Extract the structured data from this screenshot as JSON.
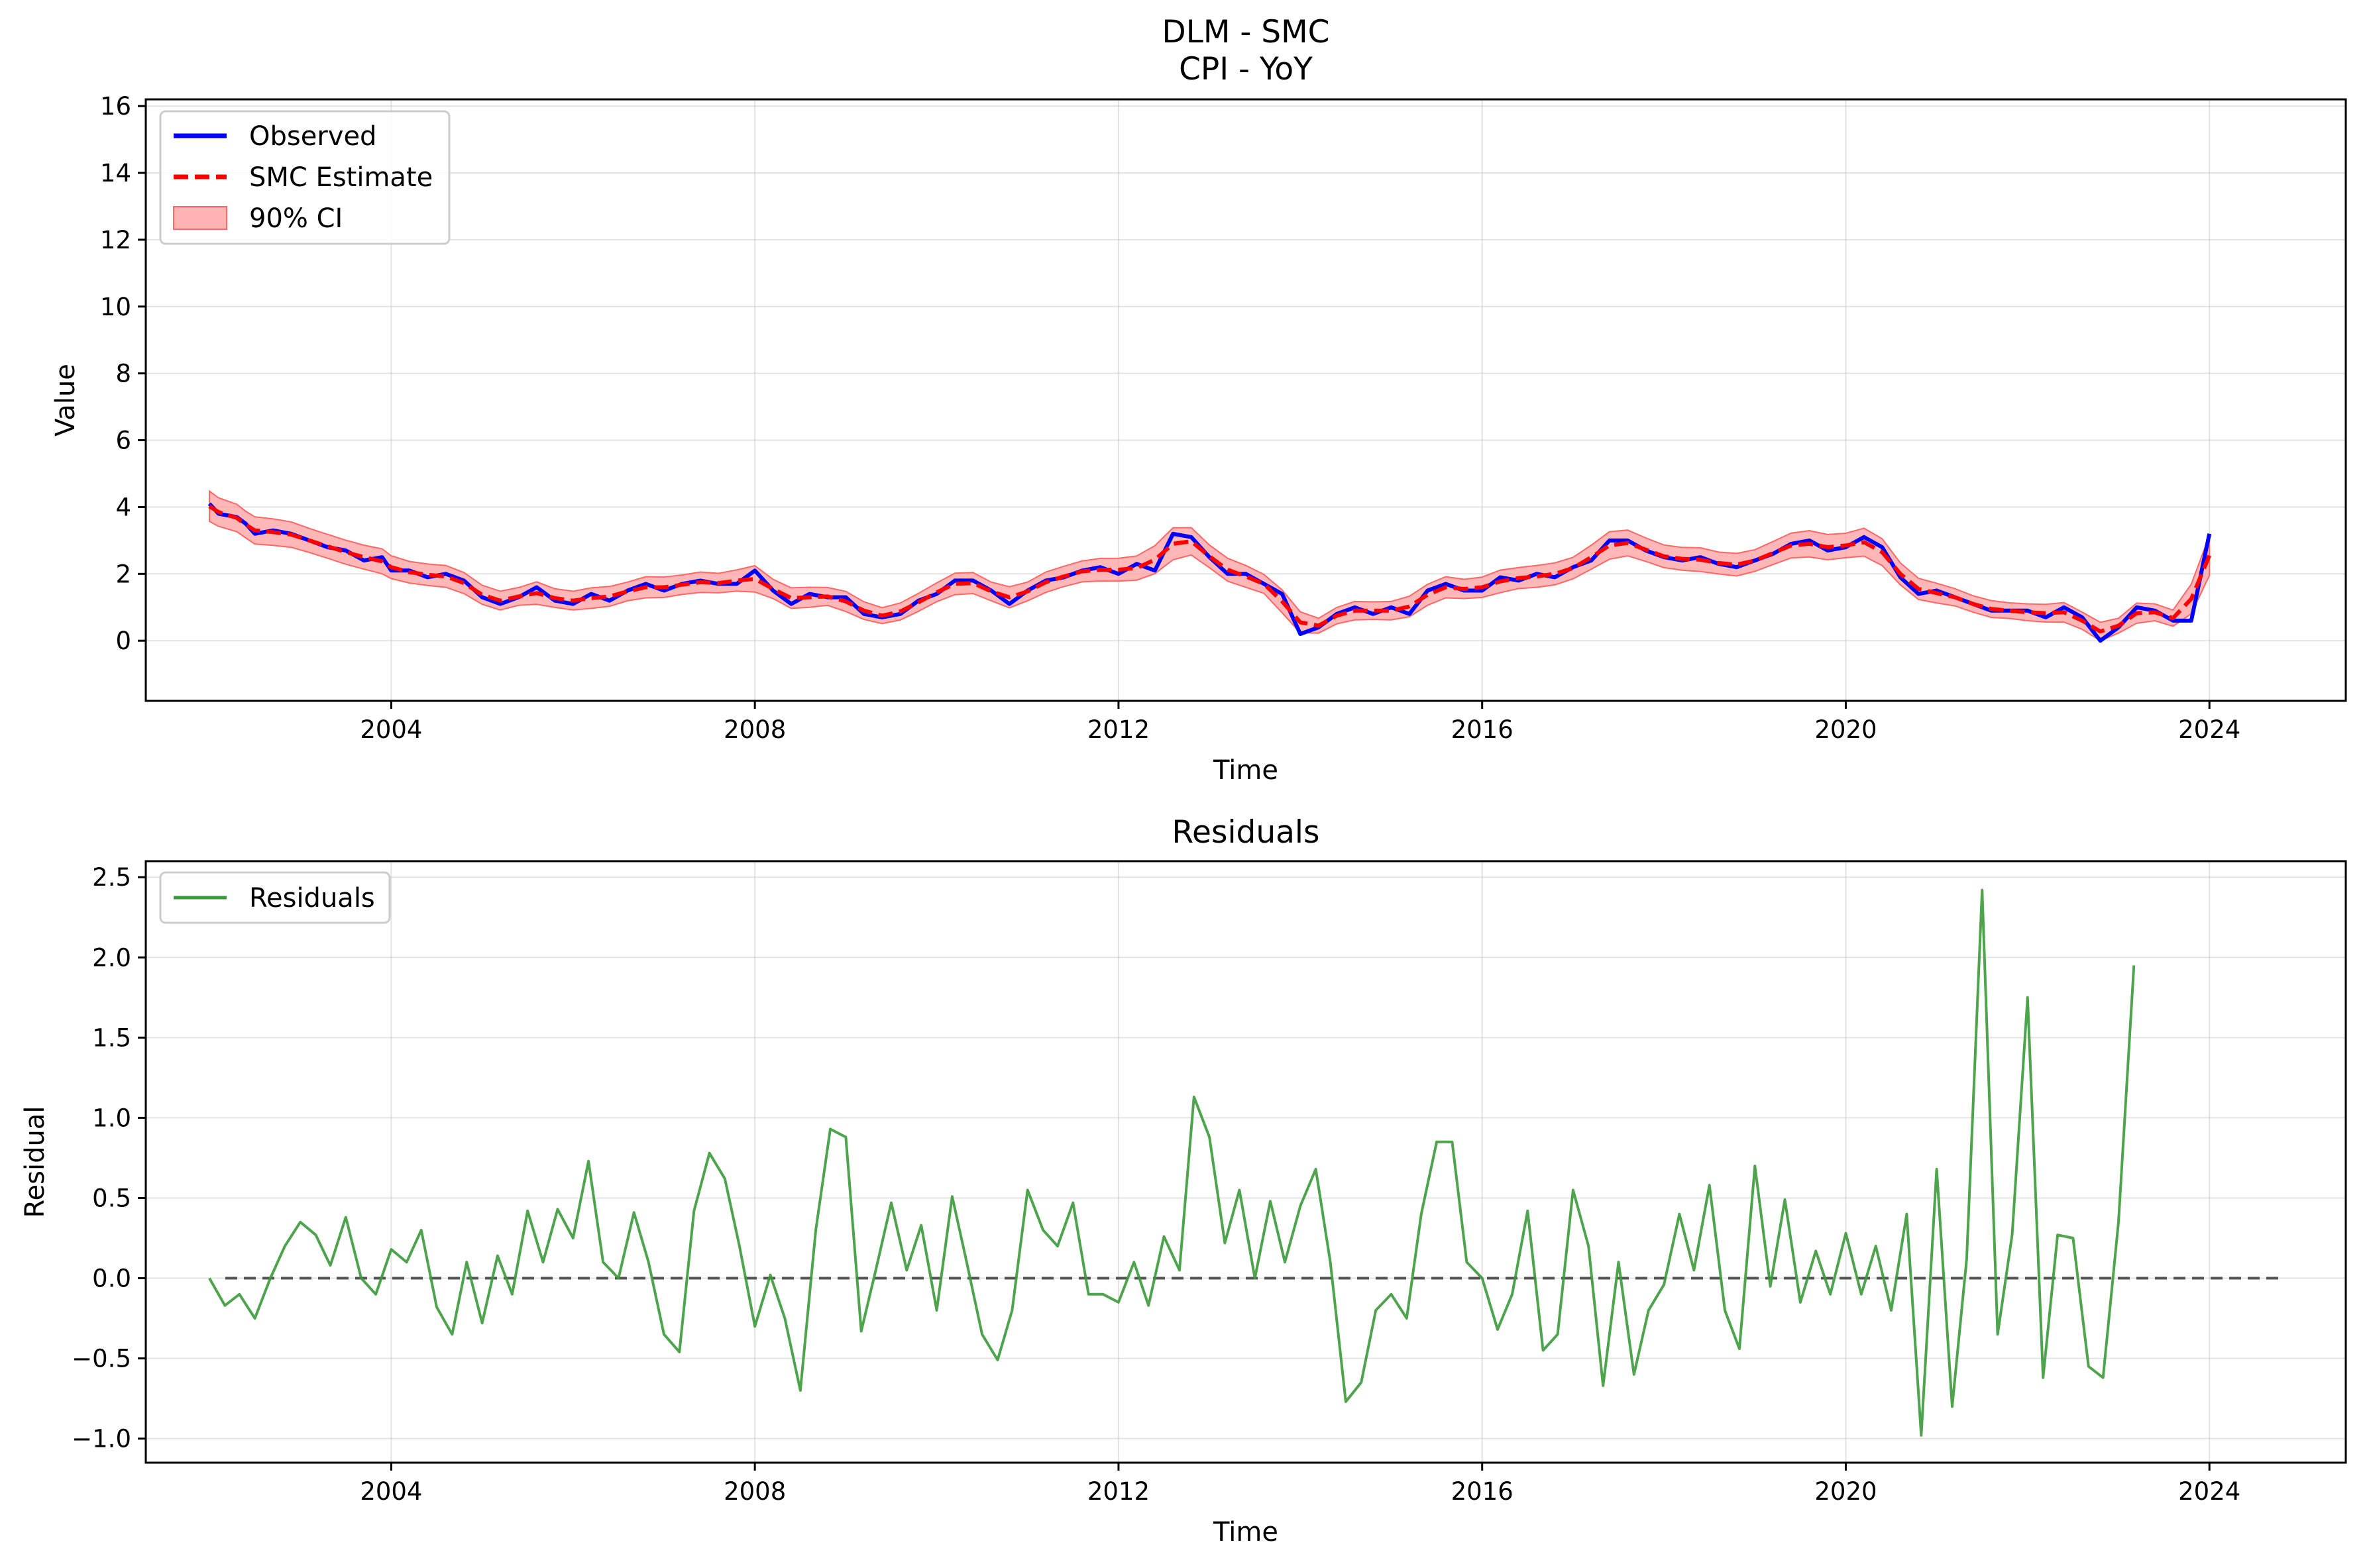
{
  "chart_data": [
    {
      "type": "line",
      "title": "DLM - SMC",
      "subtitle": "CPI - YoY",
      "xlabel": "Time",
      "ylabel": "Value",
      "xlim": [
        2001.3,
        2025.5
      ],
      "ylim": [
        -1.8,
        16.2
      ],
      "xticks": [
        2004,
        2008,
        2012,
        2016,
        2020,
        2024
      ],
      "yticks": [
        0,
        2,
        4,
        6,
        8,
        10,
        12,
        14,
        16
      ],
      "grid": true,
      "legend": {
        "placement": "top-left",
        "entries": [
          "Observed",
          "SMC Estimate",
          "90% CI"
        ]
      },
      "colors": {
        "observed": "#0000ff",
        "estimate": "#ff0000",
        "ci": "#ff9999"
      },
      "series": [
        {
          "name": "Observed",
          "style": "solid",
          "points": [
            [
              2002.0,
              4.1
            ],
            [
              2002.1,
              3.8
            ],
            [
              2002.3,
              3.7
            ],
            [
              2002.4,
              3.5
            ],
            [
              2002.5,
              3.2
            ],
            [
              2002.7,
              3.3
            ],
            [
              2002.9,
              3.2
            ],
            [
              2003.1,
              3.0
            ],
            [
              2003.3,
              2.8
            ],
            [
              2003.5,
              2.7
            ],
            [
              2003.7,
              2.4
            ],
            [
              2003.9,
              2.5
            ],
            [
              2004.0,
              2.1
            ],
            [
              2004.2,
              2.1
            ],
            [
              2004.4,
              1.9
            ],
            [
              2004.6,
              2.0
            ],
            [
              2004.8,
              1.8
            ],
            [
              2005.0,
              1.3
            ],
            [
              2005.2,
              1.1
            ],
            [
              2005.4,
              1.3
            ],
            [
              2005.6,
              1.6
            ],
            [
              2005.8,
              1.2
            ],
            [
              2006.0,
              1.1
            ],
            [
              2006.2,
              1.4
            ],
            [
              2006.4,
              1.2
            ],
            [
              2006.6,
              1.5
            ],
            [
              2006.8,
              1.7
            ],
            [
              2007.0,
              1.5
            ],
            [
              2007.2,
              1.7
            ],
            [
              2007.4,
              1.8
            ],
            [
              2007.6,
              1.7
            ],
            [
              2007.8,
              1.7
            ],
            [
              2008.0,
              2.1
            ],
            [
              2008.2,
              1.5
            ],
            [
              2008.4,
              1.1
            ],
            [
              2008.6,
              1.4
            ],
            [
              2008.8,
              1.3
            ],
            [
              2009.0,
              1.3
            ],
            [
              2009.2,
              0.8
            ],
            [
              2009.4,
              0.7
            ],
            [
              2009.6,
              0.8
            ],
            [
              2009.8,
              1.2
            ],
            [
              2010.0,
              1.4
            ],
            [
              2010.2,
              1.8
            ],
            [
              2010.4,
              1.8
            ],
            [
              2010.6,
              1.5
            ],
            [
              2010.8,
              1.1
            ],
            [
              2011.0,
              1.5
            ],
            [
              2011.2,
              1.8
            ],
            [
              2011.4,
              1.9
            ],
            [
              2011.6,
              2.1
            ],
            [
              2011.8,
              2.2
            ],
            [
              2012.0,
              2.0
            ],
            [
              2012.2,
              2.3
            ],
            [
              2012.4,
              2.1
            ],
            [
              2012.6,
              3.2
            ],
            [
              2012.8,
              3.1
            ],
            [
              2013.0,
              2.5
            ],
            [
              2013.2,
              2.0
            ],
            [
              2013.4,
              2.0
            ],
            [
              2013.6,
              1.7
            ],
            [
              2013.8,
              1.4
            ],
            [
              2014.0,
              0.2
            ],
            [
              2014.2,
              0.4
            ],
            [
              2014.4,
              0.8
            ],
            [
              2014.6,
              1.0
            ],
            [
              2014.8,
              0.8
            ],
            [
              2015.0,
              1.0
            ],
            [
              2015.2,
              0.8
            ],
            [
              2015.4,
              1.5
            ],
            [
              2015.6,
              1.7
            ],
            [
              2015.8,
              1.5
            ],
            [
              2016.0,
              1.5
            ],
            [
              2016.2,
              1.9
            ],
            [
              2016.4,
              1.8
            ],
            [
              2016.6,
              2.0
            ],
            [
              2016.8,
              1.9
            ],
            [
              2017.0,
              2.2
            ],
            [
              2017.2,
              2.4
            ],
            [
              2017.4,
              3.0
            ],
            [
              2017.6,
              3.0
            ],
            [
              2017.8,
              2.7
            ],
            [
              2018.0,
              2.5
            ],
            [
              2018.2,
              2.4
            ],
            [
              2018.4,
              2.5
            ],
            [
              2018.6,
              2.3
            ],
            [
              2018.8,
              2.2
            ],
            [
              2019.0,
              2.4
            ],
            [
              2019.2,
              2.6
            ],
            [
              2019.4,
              2.9
            ],
            [
              2019.6,
              3.0
            ],
            [
              2019.8,
              2.7
            ],
            [
              2020.0,
              2.8
            ],
            [
              2020.2,
              3.1
            ],
            [
              2020.4,
              2.8
            ],
            [
              2020.6,
              1.9
            ],
            [
              2020.8,
              1.4
            ],
            [
              2021.0,
              1.5
            ],
            [
              2021.2,
              1.3
            ],
            [
              2021.4,
              1.1
            ],
            [
              2021.6,
              0.9
            ],
            [
              2021.8,
              0.9
            ],
            [
              2022.0,
              0.9
            ],
            [
              2022.2,
              0.7
            ],
            [
              2022.4,
              1.0
            ],
            [
              2022.6,
              0.7
            ],
            [
              2022.8,
              0.0
            ],
            [
              2023.0,
              0.4
            ],
            [
              2023.2,
              1.0
            ],
            [
              2023.4,
              0.9
            ],
            [
              2023.6,
              0.6
            ],
            [
              2023.8,
              0.6
            ],
            [
              2024.0,
              3.2
            ]
          ]
        }
      ]
    },
    {
      "type": "line",
      "title": "Residuals",
      "xlabel": "Time",
      "ylabel": "Residual",
      "xlim": [
        2001.3,
        2025.5
      ],
      "ylim": [
        -1.15,
        2.6
      ],
      "xticks": [
        2004,
        2008,
        2012,
        2016,
        2020,
        2024
      ],
      "yticks": [
        -1.0,
        -0.5,
        0.0,
        0.5,
        1.0,
        1.5,
        2.0,
        2.5
      ],
      "grid": true,
      "legend": {
        "placement": "top-left",
        "entries": [
          "Residuals"
        ]
      },
      "colors": {
        "residuals": "#3a9a3a",
        "zero_line": "#555555"
      },
      "series": [
        {
          "name": "Residuals",
          "points": [
            [
              2002.0,
              0.0
            ],
            [
              2002.17,
              -0.17
            ],
            [
              2002.33,
              -0.1
            ],
            [
              2002.5,
              -0.25
            ],
            [
              2002.67,
              0.0
            ],
            [
              2002.83,
              0.2
            ],
            [
              2003.0,
              0.35
            ],
            [
              2003.17,
              0.27
            ],
            [
              2003.33,
              0.08
            ],
            [
              2003.5,
              0.38
            ],
            [
              2003.67,
              0.0
            ],
            [
              2003.83,
              -0.1
            ],
            [
              2004.0,
              0.18
            ],
            [
              2004.17,
              0.1
            ],
            [
              2004.33,
              0.3
            ],
            [
              2004.5,
              -0.18
            ],
            [
              2004.67,
              -0.35
            ],
            [
              2004.83,
              0.1
            ],
            [
              2005.0,
              -0.28
            ],
            [
              2005.17,
              0.14
            ],
            [
              2005.33,
              -0.1
            ],
            [
              2005.5,
              0.42
            ],
            [
              2005.67,
              0.1
            ],
            [
              2005.83,
              0.43
            ],
            [
              2006.0,
              0.25
            ],
            [
              2006.17,
              0.73
            ],
            [
              2006.33,
              0.1
            ],
            [
              2006.5,
              0.0
            ],
            [
              2006.67,
              0.41
            ],
            [
              2006.83,
              0.1
            ],
            [
              2007.0,
              -0.35
            ],
            [
              2007.17,
              -0.46
            ],
            [
              2007.33,
              0.42
            ],
            [
              2007.5,
              0.78
            ],
            [
              2007.67,
              0.62
            ],
            [
              2007.83,
              0.2
            ],
            [
              2008.0,
              -0.3
            ],
            [
              2008.17,
              0.02
            ],
            [
              2008.33,
              -0.25
            ],
            [
              2008.5,
              -0.7
            ],
            [
              2008.67,
              0.3
            ],
            [
              2008.83,
              0.93
            ],
            [
              2009.0,
              0.88
            ],
            [
              2009.17,
              -0.33
            ],
            [
              2009.33,
              0.05
            ],
            [
              2009.5,
              0.47
            ],
            [
              2009.67,
              0.05
            ],
            [
              2009.83,
              0.33
            ],
            [
              2010.0,
              -0.2
            ],
            [
              2010.17,
              0.51
            ],
            [
              2010.33,
              0.1
            ],
            [
              2010.5,
              -0.35
            ],
            [
              2010.67,
              -0.51
            ],
            [
              2010.83,
              -0.2
            ],
            [
              2011.0,
              0.55
            ],
            [
              2011.17,
              0.3
            ],
            [
              2011.33,
              0.2
            ],
            [
              2011.5,
              0.47
            ],
            [
              2011.67,
              -0.1
            ],
            [
              2011.83,
              -0.1
            ],
            [
              2012.0,
              -0.15
            ],
            [
              2012.17,
              0.1
            ],
            [
              2012.33,
              -0.17
            ],
            [
              2012.5,
              0.26
            ],
            [
              2012.67,
              0.05
            ],
            [
              2012.83,
              1.13
            ],
            [
              2013.0,
              0.88
            ],
            [
              2013.17,
              0.22
            ],
            [
              2013.33,
              0.55
            ],
            [
              2013.5,
              0.0
            ],
            [
              2013.67,
              0.48
            ],
            [
              2013.83,
              0.1
            ],
            [
              2014.0,
              0.45
            ],
            [
              2014.17,
              0.68
            ],
            [
              2014.33,
              0.1
            ],
            [
              2014.5,
              -0.77
            ],
            [
              2014.67,
              -0.65
            ],
            [
              2014.83,
              -0.2
            ],
            [
              2015.0,
              -0.1
            ],
            [
              2015.17,
              -0.25
            ],
            [
              2015.33,
              0.4
            ],
            [
              2015.5,
              0.85
            ],
            [
              2015.67,
              0.85
            ],
            [
              2015.83,
              0.1
            ],
            [
              2016.0,
              0.0
            ],
            [
              2016.17,
              -0.32
            ],
            [
              2016.33,
              -0.1
            ],
            [
              2016.5,
              0.42
            ],
            [
              2016.67,
              -0.45
            ],
            [
              2016.83,
              -0.35
            ],
            [
              2017.0,
              0.55
            ],
            [
              2017.17,
              0.2
            ],
            [
              2017.33,
              -0.67
            ],
            [
              2017.5,
              0.1
            ],
            [
              2017.67,
              -0.6
            ],
            [
              2017.83,
              -0.2
            ],
            [
              2018.0,
              -0.04
            ],
            [
              2018.17,
              0.4
            ],
            [
              2018.33,
              0.05
            ],
            [
              2018.5,
              0.58
            ],
            [
              2018.67,
              -0.2
            ],
            [
              2018.83,
              -0.44
            ],
            [
              2019.0,
              0.7
            ],
            [
              2019.17,
              -0.05
            ],
            [
              2019.33,
              0.49
            ],
            [
              2019.5,
              -0.15
            ],
            [
              2019.67,
              0.17
            ],
            [
              2019.83,
              -0.1
            ],
            [
              2020.0,
              0.28
            ],
            [
              2020.17,
              -0.1
            ],
            [
              2020.33,
              0.2
            ],
            [
              2020.5,
              -0.2
            ],
            [
              2020.67,
              0.4
            ],
            [
              2020.83,
              -0.98
            ],
            [
              2021.0,
              0.68
            ],
            [
              2021.17,
              -0.8
            ],
            [
              2021.33,
              0.12
            ],
            [
              2021.5,
              2.42
            ],
            [
              2021.67,
              -0.35
            ],
            [
              2021.83,
              0.27
            ],
            [
              2022.0,
              1.75
            ],
            [
              2022.17,
              -0.62
            ],
            [
              2022.33,
              0.27
            ],
            [
              2022.5,
              0.25
            ],
            [
              2022.67,
              -0.55
            ],
            [
              2022.83,
              -0.62
            ],
            [
              2023.0,
              0.35
            ],
            [
              2023.17,
              1.95
            ]
          ]
        }
      ]
    }
  ]
}
